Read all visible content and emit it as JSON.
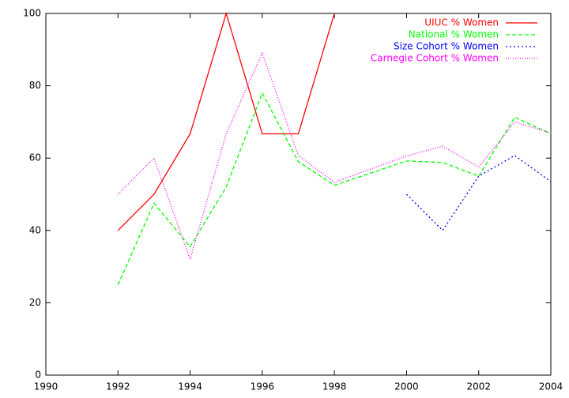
{
  "chart_data": {
    "type": "line",
    "x": [
      1992,
      1993,
      1994,
      1995,
      1996,
      1997,
      1998,
      2000,
      2001,
      2002,
      2003,
      2004
    ],
    "series": [
      {
        "name": "UIUC % Women",
        "color": "#ff0000",
        "line_style": "solid",
        "values": [
          40,
          50,
          66.7,
          100,
          66.7,
          66.7,
          100,
          null,
          null,
          null,
          null,
          null
        ]
      },
      {
        "name": "National % Women",
        "color": "#00ff00",
        "line_style": "dashed",
        "values": [
          25,
          47.5,
          35.5,
          52,
          78,
          59,
          52.5,
          59.2,
          58.8,
          55,
          71.3,
          66.7
        ]
      },
      {
        "name": "Size Cohort % Women",
        "color": "#0000ff",
        "line_style": "dotted",
        "values": [
          null,
          null,
          null,
          null,
          null,
          null,
          null,
          50,
          40,
          55,
          60.7,
          53.5
        ]
      },
      {
        "name": "Carnegie Cohort % Women",
        "color": "#ff00ff",
        "line_style": "fine-dotted",
        "values": [
          50,
          60,
          32,
          66.7,
          89,
          60.7,
          53.3,
          60.6,
          63.3,
          57.5,
          70,
          67
        ]
      }
    ],
    "xlim": [
      1990,
      2004
    ],
    "xticks": [
      1990,
      1992,
      1994,
      1996,
      1998,
      2000,
      2002,
      2004
    ],
    "ylim": [
      0,
      100
    ],
    "yticks": [
      0,
      20,
      40,
      60,
      80,
      100
    ],
    "legend": "top-right"
  }
}
